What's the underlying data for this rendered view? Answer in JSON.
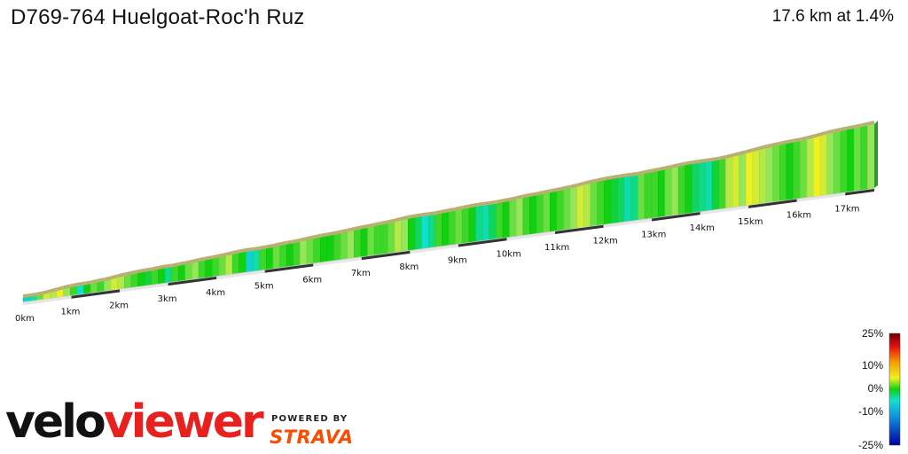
{
  "header": {
    "title": "D769-764 Huelgoat-Roc'h Ruz",
    "summary": "17.6 km at 1.4%"
  },
  "branding": {
    "logo_text_1": "velo",
    "logo_text_2": "viewer",
    "powered_by": "POWERED BY",
    "strava": "STRAVA"
  },
  "chart_data": {
    "type": "area",
    "title": "D769-764 Huelgoat-Roc'h Ruz",
    "distance_km": 17.6,
    "average_gradient_pct": 1.4,
    "km_labels": [
      "0km",
      "1km",
      "2km",
      "3km",
      "4km",
      "5km",
      "6km",
      "7km",
      "8km",
      "9km",
      "10km",
      "11km",
      "12km",
      "13km",
      "14km",
      "15km",
      "16km",
      "17km"
    ],
    "gradient_pct_by_segment": [
      -6,
      -4,
      2,
      5,
      4,
      6,
      3,
      1,
      -5,
      0,
      2,
      1,
      3,
      5,
      4,
      2,
      1,
      0,
      -1,
      1,
      0,
      -3,
      1,
      0,
      2,
      3,
      1,
      0,
      1,
      2,
      4,
      1,
      0,
      -6,
      -4,
      1,
      0,
      2,
      1,
      0,
      1,
      3,
      2,
      1,
      0,
      0,
      1,
      2,
      3,
      1,
      0,
      2,
      1,
      1,
      2,
      4,
      3,
      0,
      -2,
      -5,
      -3,
      1,
      0,
      1,
      2,
      1,
      0,
      -3,
      -4,
      -2,
      1,
      0,
      2,
      3,
      1,
      0,
      1,
      2,
      0,
      1,
      2,
      3,
      5,
      4,
      2,
      1,
      0,
      -1,
      -2,
      -4,
      -3,
      2,
      1,
      1,
      0,
      2,
      3,
      1,
      0,
      -2,
      -3,
      -4,
      -1,
      1,
      4,
      5,
      3,
      6,
      5,
      4,
      3,
      2,
      1,
      0,
      1,
      2,
      4,
      6,
      5,
      3,
      2,
      1,
      0,
      2,
      1,
      3
    ],
    "legend": {
      "title": "",
      "ticks": [
        "25%",
        "10%",
        "0%",
        "-10%",
        "-25%"
      ],
      "range_pct": [
        -25,
        25
      ]
    }
  }
}
